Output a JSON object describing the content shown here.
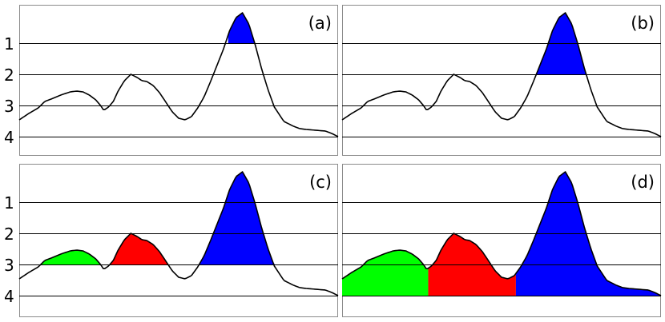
{
  "figure": {
    "axis_ticks": [
      "1",
      "2",
      "3",
      "4"
    ],
    "colors": {
      "green": "#00ff00",
      "red": "#ff0000",
      "blue": "#0000ff"
    },
    "panels": [
      {
        "label": "(a)",
        "fill_level": 1,
        "regions": [
          {
            "color": "blue",
            "from": 0.655,
            "to": 0.75
          }
        ]
      },
      {
        "label": "(b)",
        "fill_level": 2,
        "regions": [
          {
            "color": "blue",
            "from": 0.58,
            "to": 0.79
          }
        ]
      },
      {
        "label": "(c)",
        "fill_level": 3,
        "regions": [
          {
            "color": "green",
            "from": 0.0,
            "to": 0.26
          },
          {
            "color": "red",
            "from": 0.26,
            "to": 0.52
          },
          {
            "color": "blue",
            "from": 0.52,
            "to": 1.0
          }
        ]
      },
      {
        "label": "(d)",
        "fill_level": 4,
        "regions": [
          {
            "color": "green",
            "from": 0.0,
            "to": 0.27
          },
          {
            "color": "red",
            "from": 0.27,
            "to": 0.545
          },
          {
            "color": "blue",
            "from": 0.545,
            "to": 1.0
          }
        ]
      }
    ]
  }
}
